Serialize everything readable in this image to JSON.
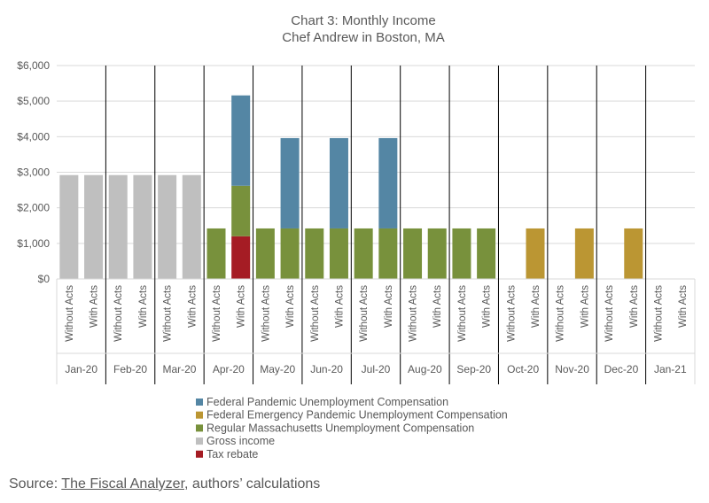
{
  "chart_data": {
    "type": "bar",
    "stacked": true,
    "title": "Chart 3: Monthly Income",
    "subtitle": "Chef Andrew in Boston, MA",
    "months": [
      "Jan-20",
      "Feb-20",
      "Mar-20",
      "Apr-20",
      "May-20",
      "Jun-20",
      "Jul-20",
      "Aug-20",
      "Sep-20",
      "Oct-20",
      "Nov-20",
      "Dec-20",
      "Jan-21"
    ],
    "scenarios": [
      "Without Acts",
      "With Acts"
    ],
    "ylim": [
      0,
      6000
    ],
    "yticks": [
      0,
      1000,
      2000,
      3000,
      4000,
      5000,
      6000
    ],
    "ytick_labels": [
      "$0",
      "$1,000",
      "$2,000",
      "$3,000",
      "$4,000",
      "$5,000",
      "$6,000"
    ],
    "grid": true,
    "legend_position": "bottom",
    "series": [
      {
        "name": "Tax rebate",
        "color": "#a51c24",
        "values": [
          [
            0,
            0
          ],
          [
            0,
            0
          ],
          [
            0,
            0
          ],
          [
            0,
            1200
          ],
          [
            0,
            0
          ],
          [
            0,
            0
          ],
          [
            0,
            0
          ],
          [
            0,
            0
          ],
          [
            0,
            0
          ],
          [
            0,
            0
          ],
          [
            0,
            0
          ],
          [
            0,
            0
          ],
          [
            0,
            0
          ]
        ]
      },
      {
        "name": "Gross income",
        "color": "#bfbfbf",
        "values": [
          [
            2920,
            2920
          ],
          [
            2920,
            2920
          ],
          [
            2920,
            2920
          ],
          [
            0,
            0
          ],
          [
            0,
            0
          ],
          [
            0,
            0
          ],
          [
            0,
            0
          ],
          [
            0,
            0
          ],
          [
            0,
            0
          ],
          [
            0,
            0
          ],
          [
            0,
            0
          ],
          [
            0,
            0
          ],
          [
            0,
            0
          ]
        ]
      },
      {
        "name": "Regular Massachusetts Unemployment Compensation",
        "color": "#78913c",
        "values": [
          [
            0,
            0
          ],
          [
            0,
            0
          ],
          [
            0,
            0
          ],
          [
            1420,
            1420
          ],
          [
            1420,
            1420
          ],
          [
            1420,
            1420
          ],
          [
            1420,
            1420
          ],
          [
            1420,
            1420
          ],
          [
            1420,
            1420
          ],
          [
            0,
            0
          ],
          [
            0,
            0
          ],
          [
            0,
            0
          ],
          [
            0,
            0
          ]
        ]
      },
      {
        "name": "Federal Emergency Pandemic Unemployment Compensation",
        "color": "#bb9633",
        "values": [
          [
            0,
            0
          ],
          [
            0,
            0
          ],
          [
            0,
            0
          ],
          [
            0,
            0
          ],
          [
            0,
            0
          ],
          [
            0,
            0
          ],
          [
            0,
            0
          ],
          [
            0,
            0
          ],
          [
            0,
            0
          ],
          [
            0,
            1420
          ],
          [
            0,
            1420
          ],
          [
            0,
            1420
          ],
          [
            0,
            0
          ]
        ]
      },
      {
        "name": "Federal Pandemic Unemployment Compensation",
        "color": "#5486a4",
        "values": [
          [
            0,
            0
          ],
          [
            0,
            0
          ],
          [
            0,
            0
          ],
          [
            0,
            2540
          ],
          [
            0,
            2540
          ],
          [
            0,
            2540
          ],
          [
            0,
            2540
          ],
          [
            0,
            0
          ],
          [
            0,
            0
          ],
          [
            0,
            0
          ],
          [
            0,
            0
          ],
          [
            0,
            0
          ],
          [
            0,
            0
          ]
        ]
      }
    ],
    "legend_order": [
      "Federal Pandemic Unemployment Compensation",
      "Federal Emergency Pandemic Unemployment Compensation",
      "Regular Massachusetts Unemployment Compensation",
      "Gross income",
      "Tax rebate"
    ]
  },
  "source": {
    "prefix": "Source: ",
    "link_text": "The Fiscal Analyzer",
    "suffix": ", authors’ calculations"
  }
}
